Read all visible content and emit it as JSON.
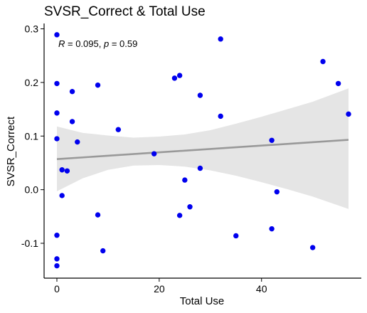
{
  "chart_data": {
    "type": "scatter",
    "title": "SVSR_Correct & Total Use",
    "xlabel": "Total Use",
    "ylabel": "SVSR_Correct",
    "xlim": [
      -2.5,
      59.5
    ],
    "ylim": [
      -0.165,
      0.31
    ],
    "x_ticks": [
      0,
      20,
      40
    ],
    "y_ticks": [
      -0.1,
      0.0,
      0.1,
      0.2,
      0.3
    ],
    "y_tick_labels": [
      "-0.1",
      "0.0",
      "0.1",
      "0.2",
      "0.3"
    ],
    "grid": false,
    "annotation": {
      "r_label": "R",
      "r_text": " = 0.095, ",
      "p_label": "p",
      "p_text": " = 0.59"
    },
    "point_color": "#0000EE",
    "trend_color": "#999999",
    "band_color": "#E5E5E5",
    "trend_line": {
      "x": [
        0,
        57
      ],
      "y": [
        0.057,
        0.093
      ]
    },
    "confidence_band": {
      "x": [
        0,
        5,
        10,
        15,
        20,
        25,
        30,
        35,
        40,
        45,
        50,
        57
      ],
      "lower": [
        -0.003,
        0.021,
        0.037,
        0.045,
        0.046,
        0.043,
        0.036,
        0.026,
        0.014,
        0.001,
        -0.013,
        -0.036
      ],
      "upper": [
        0.118,
        0.106,
        0.101,
        0.097,
        0.099,
        0.103,
        0.111,
        0.123,
        0.136,
        0.15,
        0.164,
        0.189
      ]
    },
    "points": [
      {
        "x": 0,
        "y": 0.289
      },
      {
        "x": 0,
        "y": 0.198
      },
      {
        "x": 0,
        "y": 0.143
      },
      {
        "x": 0,
        "y": 0.095
      },
      {
        "x": 0,
        "y": -0.085
      },
      {
        "x": 0,
        "y": -0.129
      },
      {
        "x": 0,
        "y": -0.142
      },
      {
        "x": 1,
        "y": 0.037
      },
      {
        "x": 1,
        "y": -0.011
      },
      {
        "x": 2,
        "y": 0.035
      },
      {
        "x": 3,
        "y": 0.183
      },
      {
        "x": 3,
        "y": 0.127
      },
      {
        "x": 4,
        "y": 0.089
      },
      {
        "x": 8,
        "y": 0.195
      },
      {
        "x": 8,
        "y": -0.047
      },
      {
        "x": 9,
        "y": -0.114
      },
      {
        "x": 12,
        "y": 0.112
      },
      {
        "x": 19,
        "y": 0.067
      },
      {
        "x": 23,
        "y": 0.208
      },
      {
        "x": 24,
        "y": 0.213
      },
      {
        "x": 24,
        "y": -0.048
      },
      {
        "x": 25,
        "y": 0.018
      },
      {
        "x": 26,
        "y": -0.032
      },
      {
        "x": 28,
        "y": 0.176
      },
      {
        "x": 28,
        "y": 0.04
      },
      {
        "x": 32,
        "y": 0.281
      },
      {
        "x": 32,
        "y": 0.137
      },
      {
        "x": 35,
        "y": -0.086
      },
      {
        "x": 42,
        "y": 0.092
      },
      {
        "x": 42,
        "y": -0.073
      },
      {
        "x": 43,
        "y": -0.004
      },
      {
        "x": 50,
        "y": -0.108
      },
      {
        "x": 52,
        "y": 0.239
      },
      {
        "x": 55,
        "y": 0.198
      },
      {
        "x": 57,
        "y": 0.141
      }
    ]
  }
}
